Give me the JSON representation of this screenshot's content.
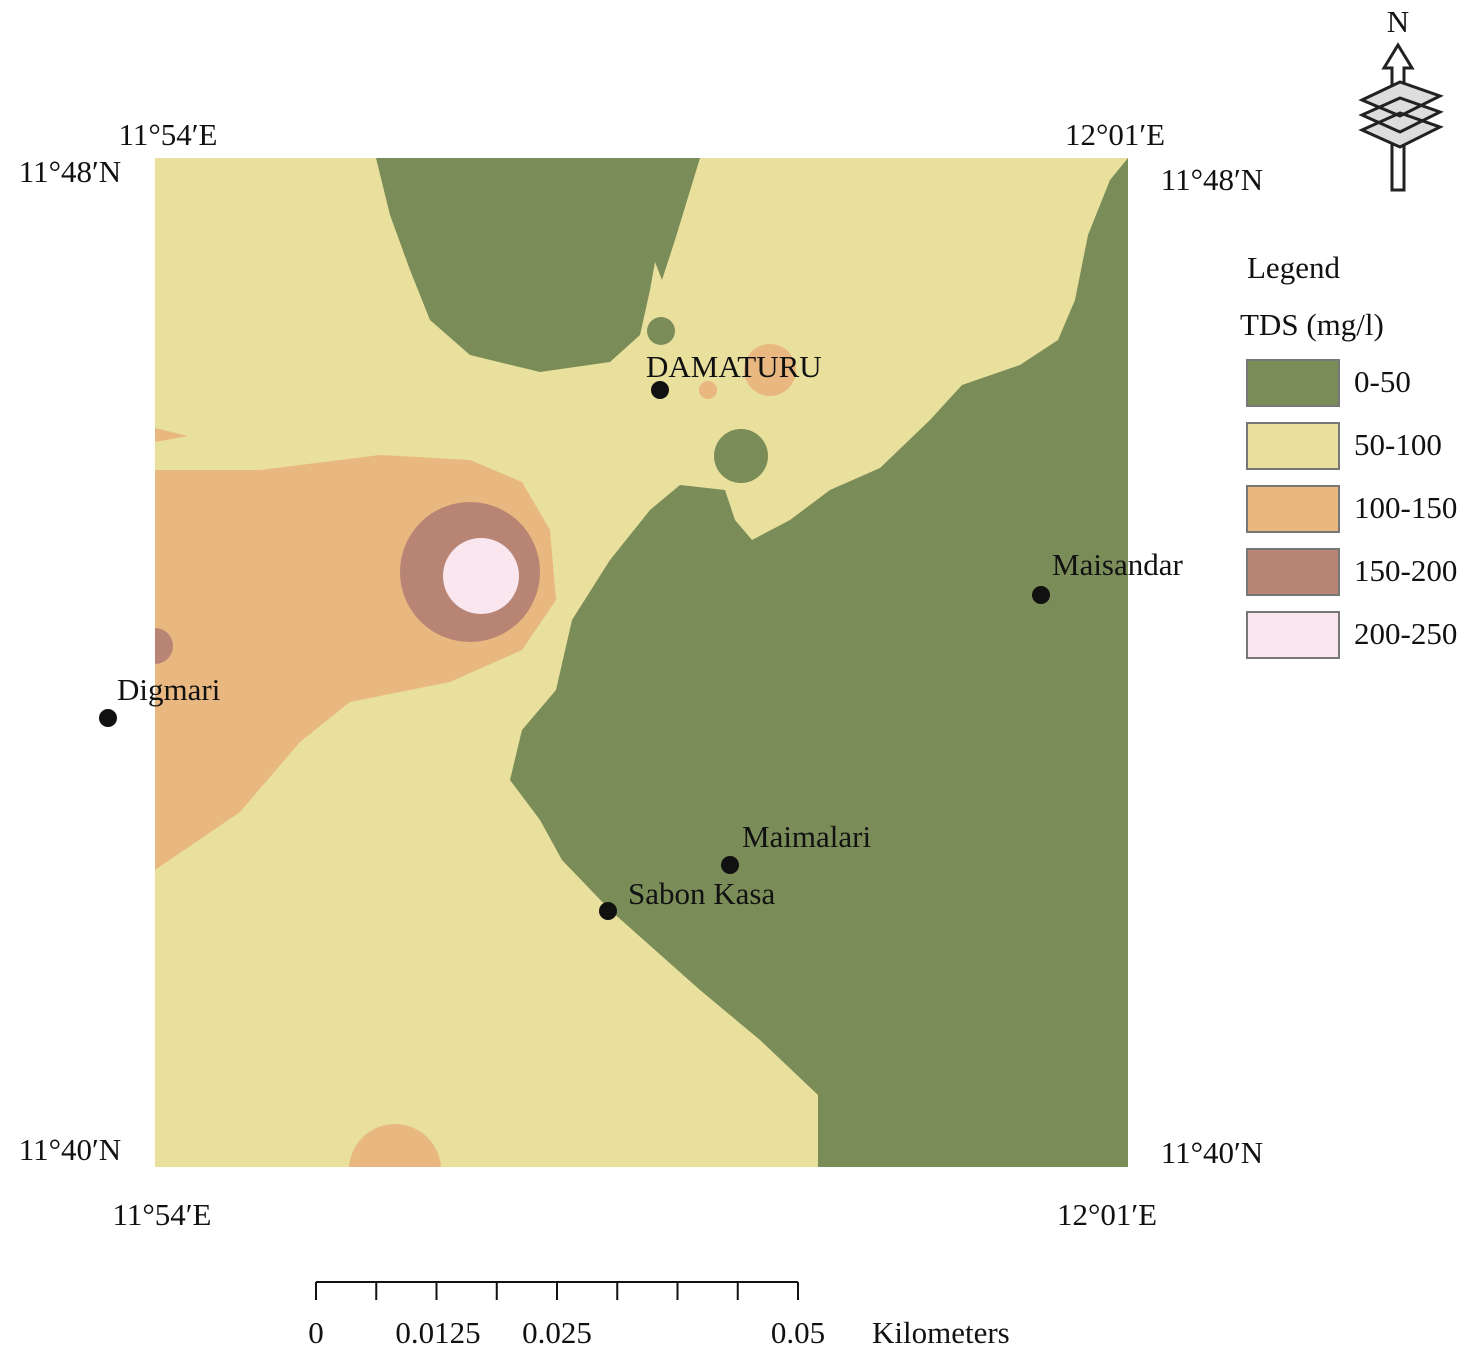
{
  "north": "N",
  "coordinates": {
    "top_left_lon": "11°54′E",
    "top_right_lon": "12°01′E",
    "top_left_lat": "11°48′N",
    "top_right_lat": "11°48′N",
    "bottom_left_lat": "11°40′N",
    "bottom_right_lat": "11°40′N",
    "bottom_left_lon": "11°54′E",
    "bottom_right_lon": "12°01′E"
  },
  "places": [
    "DAMATURU",
    "Maisandar",
    "Digmari",
    "Maimalari",
    "Sabon Kasa"
  ],
  "legend": {
    "heading": "Legend",
    "title": "TDS (mg/l)",
    "items": [
      {
        "label": "0-50",
        "color": "#7a8c58"
      },
      {
        "label": "50-100",
        "color": "#e8e09c"
      },
      {
        "label": "100-150",
        "color": "#e8b880"
      },
      {
        "label": "150-200",
        "color": "#b88474"
      },
      {
        "label": "200-250",
        "color": "#fae6ee"
      }
    ]
  },
  "scale_bar": {
    "labels": [
      "0",
      "0.0125",
      "0.025",
      "0.05"
    ],
    "unit": "Kilometers"
  }
}
